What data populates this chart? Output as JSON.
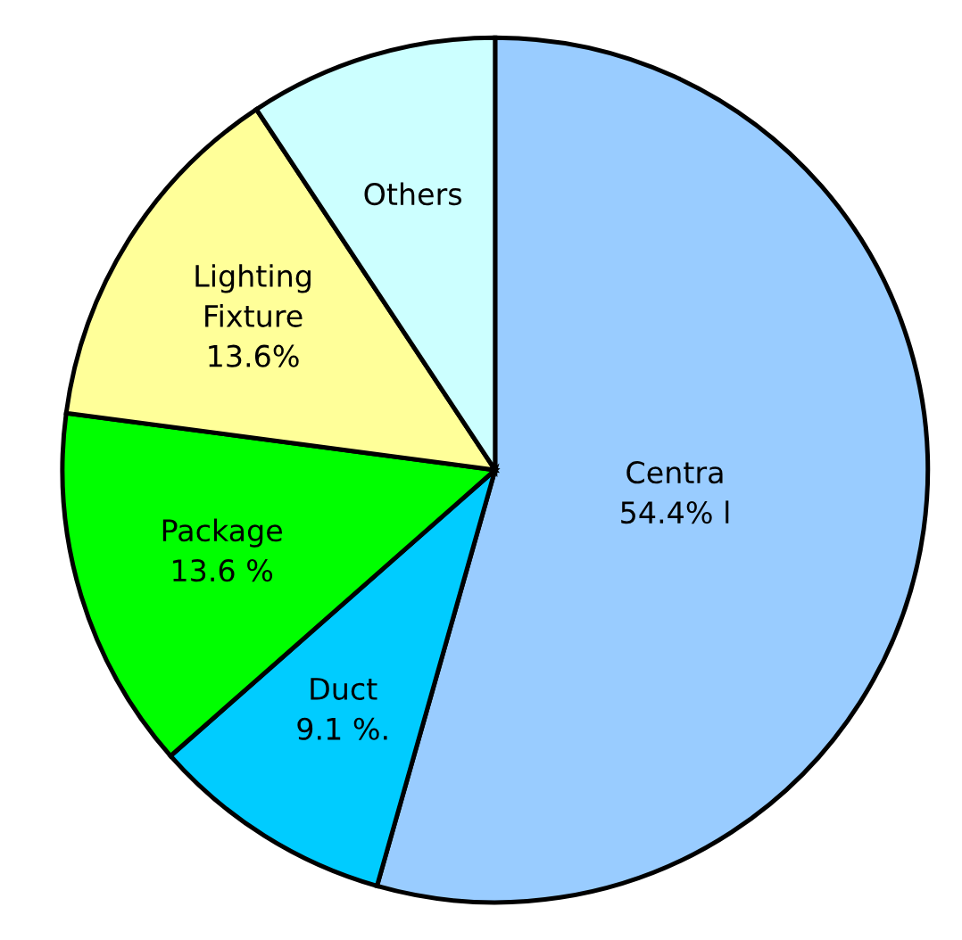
{
  "chart_data": {
    "type": "pie",
    "categories": [
      "Centra",
      "Duct",
      "Package",
      "Lighting\nFixture",
      "Others"
    ],
    "values": [
      54.4,
      9.1,
      13.6,
      13.6,
      9.3
    ],
    "value_labels": [
      "54.4% l",
      "9.1 %.",
      "13.6 %",
      "13.6%",
      null
    ],
    "colors": [
      "#99ccff",
      "#00ccff",
      "#00ff00",
      "#ffff99",
      "#ccffff"
    ]
  }
}
